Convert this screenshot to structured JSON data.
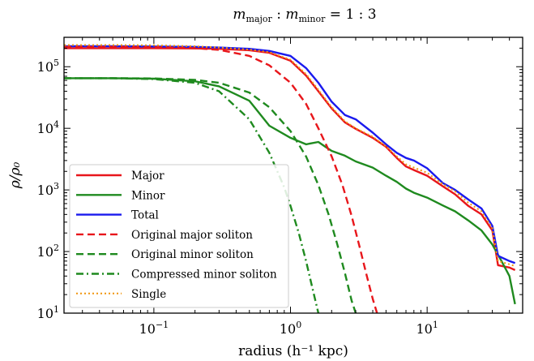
{
  "chart_data": {
    "type": "line",
    "title": {
      "m1": "m",
      "sub1": "major",
      "colon1": " : ",
      "m2": "m",
      "sub2": "minor",
      "ratio": " = 1 : 3"
    },
    "xlabel": "radius (h⁻¹ kpc)",
    "ylabel": "ρ/ρ₀",
    "x_scale": "log",
    "y_scale": "log",
    "xlim": [
      0.022,
      50
    ],
    "ylim": [
      10,
      300000
    ],
    "x_ticks": [
      {
        "value": 0.1,
        "base": "10",
        "exp": "−1"
      },
      {
        "value": 1,
        "base": "10",
        "exp": "0"
      },
      {
        "value": 10,
        "base": "10",
        "exp": "1"
      }
    ],
    "y_ticks": [
      {
        "value": 10,
        "base": "10",
        "exp": "1"
      },
      {
        "value": 100,
        "base": "10",
        "exp": "2"
      },
      {
        "value": 1000,
        "base": "10",
        "exp": "3"
      },
      {
        "value": 10000,
        "base": "10",
        "exp": "4"
      },
      {
        "value": 100000,
        "base": "10",
        "exp": "5"
      }
    ],
    "legend_position": "lower-left",
    "grid": false,
    "series": [
      {
        "name": "Major",
        "color": "#e8161b",
        "dash": "solid",
        "x": [
          0.022,
          0.05,
          0.1,
          0.2,
          0.3,
          0.5,
          0.7,
          1.0,
          1.3,
          1.6,
          2.0,
          2.5,
          3.0,
          4.0,
          5.0,
          6.0,
          7.0,
          8.0,
          10.0,
          13.0,
          16.0,
          20.0,
          25.0,
          30.0,
          33.0,
          40.0,
          44.0
        ],
        "y": [
          200000,
          200000,
          200000,
          198000,
          195000,
          185000,
          168000,
          125000,
          72000,
          40000,
          21000,
          12500,
          9800,
          7000,
          5000,
          3300,
          2400,
          2100,
          1700,
          1150,
          850,
          550,
          400,
          220,
          60,
          55,
          50
        ]
      },
      {
        "name": "Minor",
        "color": "#1f8a1f",
        "dash": "solid",
        "x": [
          0.022,
          0.05,
          0.1,
          0.2,
          0.3,
          0.5,
          0.7,
          1.0,
          1.3,
          1.6,
          1.8,
          2.0,
          2.5,
          3.0,
          4.0,
          5.0,
          6.0,
          7.0,
          8.0,
          10.0,
          13.0,
          16.0,
          20.0,
          25.0,
          30.0,
          35.0,
          40.0,
          44.0
        ],
        "y": [
          65000,
          65000,
          64000,
          58000,
          48000,
          28000,
          11000,
          7000,
          5500,
          6000,
          5000,
          4300,
          3600,
          2900,
          2300,
          1700,
          1350,
          1050,
          900,
          750,
          560,
          450,
          320,
          220,
          130,
          70,
          40,
          14
        ]
      },
      {
        "name": "Total",
        "color": "#1a1aee",
        "dash": "solid",
        "x": [
          0.022,
          0.05,
          0.1,
          0.2,
          0.3,
          0.5,
          0.7,
          1.0,
          1.3,
          1.6,
          2.0,
          2.5,
          3.0,
          4.0,
          5.0,
          6.0,
          7.0,
          8.0,
          10.0,
          13.0,
          16.0,
          20.0,
          25.0,
          30.0,
          33.0,
          40.0,
          44.0
        ],
        "y": [
          215000,
          215000,
          213000,
          210000,
          205000,
          195000,
          180000,
          150000,
          95000,
          55000,
          27000,
          16500,
          14000,
          8500,
          5500,
          4000,
          3300,
          3000,
          2250,
          1300,
          1000,
          700,
          500,
          260,
          85,
          70,
          65
        ]
      },
      {
        "name": "Original major soliton",
        "color": "#e8161b",
        "dash": "dash",
        "x": [
          0.022,
          0.05,
          0.1,
          0.2,
          0.3,
          0.5,
          0.7,
          1.0,
          1.3,
          1.6,
          2.0,
          2.4,
          2.8,
          3.2,
          3.6,
          4.0,
          4.3
        ],
        "y": [
          210000,
          210000,
          208000,
          200000,
          188000,
          150000,
          105000,
          55000,
          25000,
          10000,
          3500,
          1200,
          380,
          120,
          42,
          17,
          10
        ]
      },
      {
        "name": "Original minor soliton",
        "color": "#1f8a1f",
        "dash": "dash",
        "x": [
          0.022,
          0.05,
          0.1,
          0.2,
          0.3,
          0.5,
          0.7,
          1.0,
          1.3,
          1.6,
          1.9,
          2.2,
          2.5,
          2.8,
          3.0
        ],
        "y": [
          65000,
          65000,
          64500,
          61000,
          55000,
          38000,
          22000,
          9000,
          3500,
          1200,
          400,
          130,
          45,
          16,
          10
        ]
      },
      {
        "name": "Compressed minor soliton",
        "color": "#1f8a1f",
        "dash": "dashdot",
        "x": [
          0.022,
          0.05,
          0.1,
          0.2,
          0.3,
          0.5,
          0.7,
          0.9,
          1.0,
          1.15,
          1.3,
          1.45,
          1.6
        ],
        "y": [
          65000,
          65000,
          63000,
          55000,
          40000,
          14000,
          4000,
          1100,
          550,
          200,
          70,
          25,
          10
        ]
      },
      {
        "name": "Single",
        "color": "#f0960f",
        "dash": "dot",
        "x": [
          0.022,
          0.05,
          0.1,
          0.2,
          0.3,
          0.5,
          0.7,
          1.0,
          1.3,
          1.6,
          2.0,
          2.5,
          3.0,
          4.0,
          5.0,
          6.0,
          7.0,
          8.0,
          10.0,
          13.0,
          16.0,
          20.0,
          25.0,
          30.0,
          33.0,
          40.0,
          44.0
        ],
        "y": [
          225000,
          225000,
          223000,
          215000,
          205000,
          190000,
          172000,
          130000,
          76000,
          42000,
          22000,
          13000,
          10000,
          7300,
          5100,
          3500,
          2600,
          2300,
          1900,
          1250,
          950,
          620,
          450,
          240,
          70,
          62,
          58
        ]
      }
    ]
  }
}
